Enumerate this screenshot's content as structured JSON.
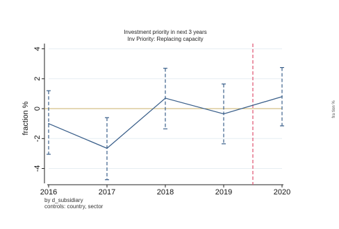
{
  "chart_data": {
    "type": "line",
    "title": "Investment priority in next 3 years",
    "subtitle": "Inv Priority: Replacing capacity",
    "xlabel": "",
    "ylabel": "fraction %",
    "x": [
      2016,
      2017,
      2018,
      2019,
      2020
    ],
    "xticks": [
      "2016",
      "2017",
      "2018",
      "2019",
      "2020"
    ],
    "yticks": [
      "-4",
      "-2",
      "0",
      "2",
      "4"
    ],
    "ytick_values": [
      -4,
      -2,
      0,
      2,
      4
    ],
    "xlim": [
      2016,
      2020
    ],
    "ylim": [
      -4.9,
      4.35
    ],
    "grid": "horizontal",
    "series": [
      {
        "values": [
          -1.0,
          -2.65,
          0.7,
          -0.35,
          0.8
        ],
        "ci_low": [
          -3.05,
          -4.75,
          -1.35,
          -2.35,
          -1.15
        ],
        "ci_high": [
          1.2,
          -0.6,
          2.7,
          1.65,
          2.75
        ],
        "color": "#3a5f8a"
      }
    ],
    "reference_line_y": 0,
    "reference_line_color": "#c9b26a",
    "vertical_marker_x": 2019.5,
    "vertical_marker_color": "#e0506f",
    "note_lines": [
      "by d_subsidiary",
      "controls: country, sector"
    ]
  },
  "side_fragment": {
    "text": "fra  tion %"
  }
}
